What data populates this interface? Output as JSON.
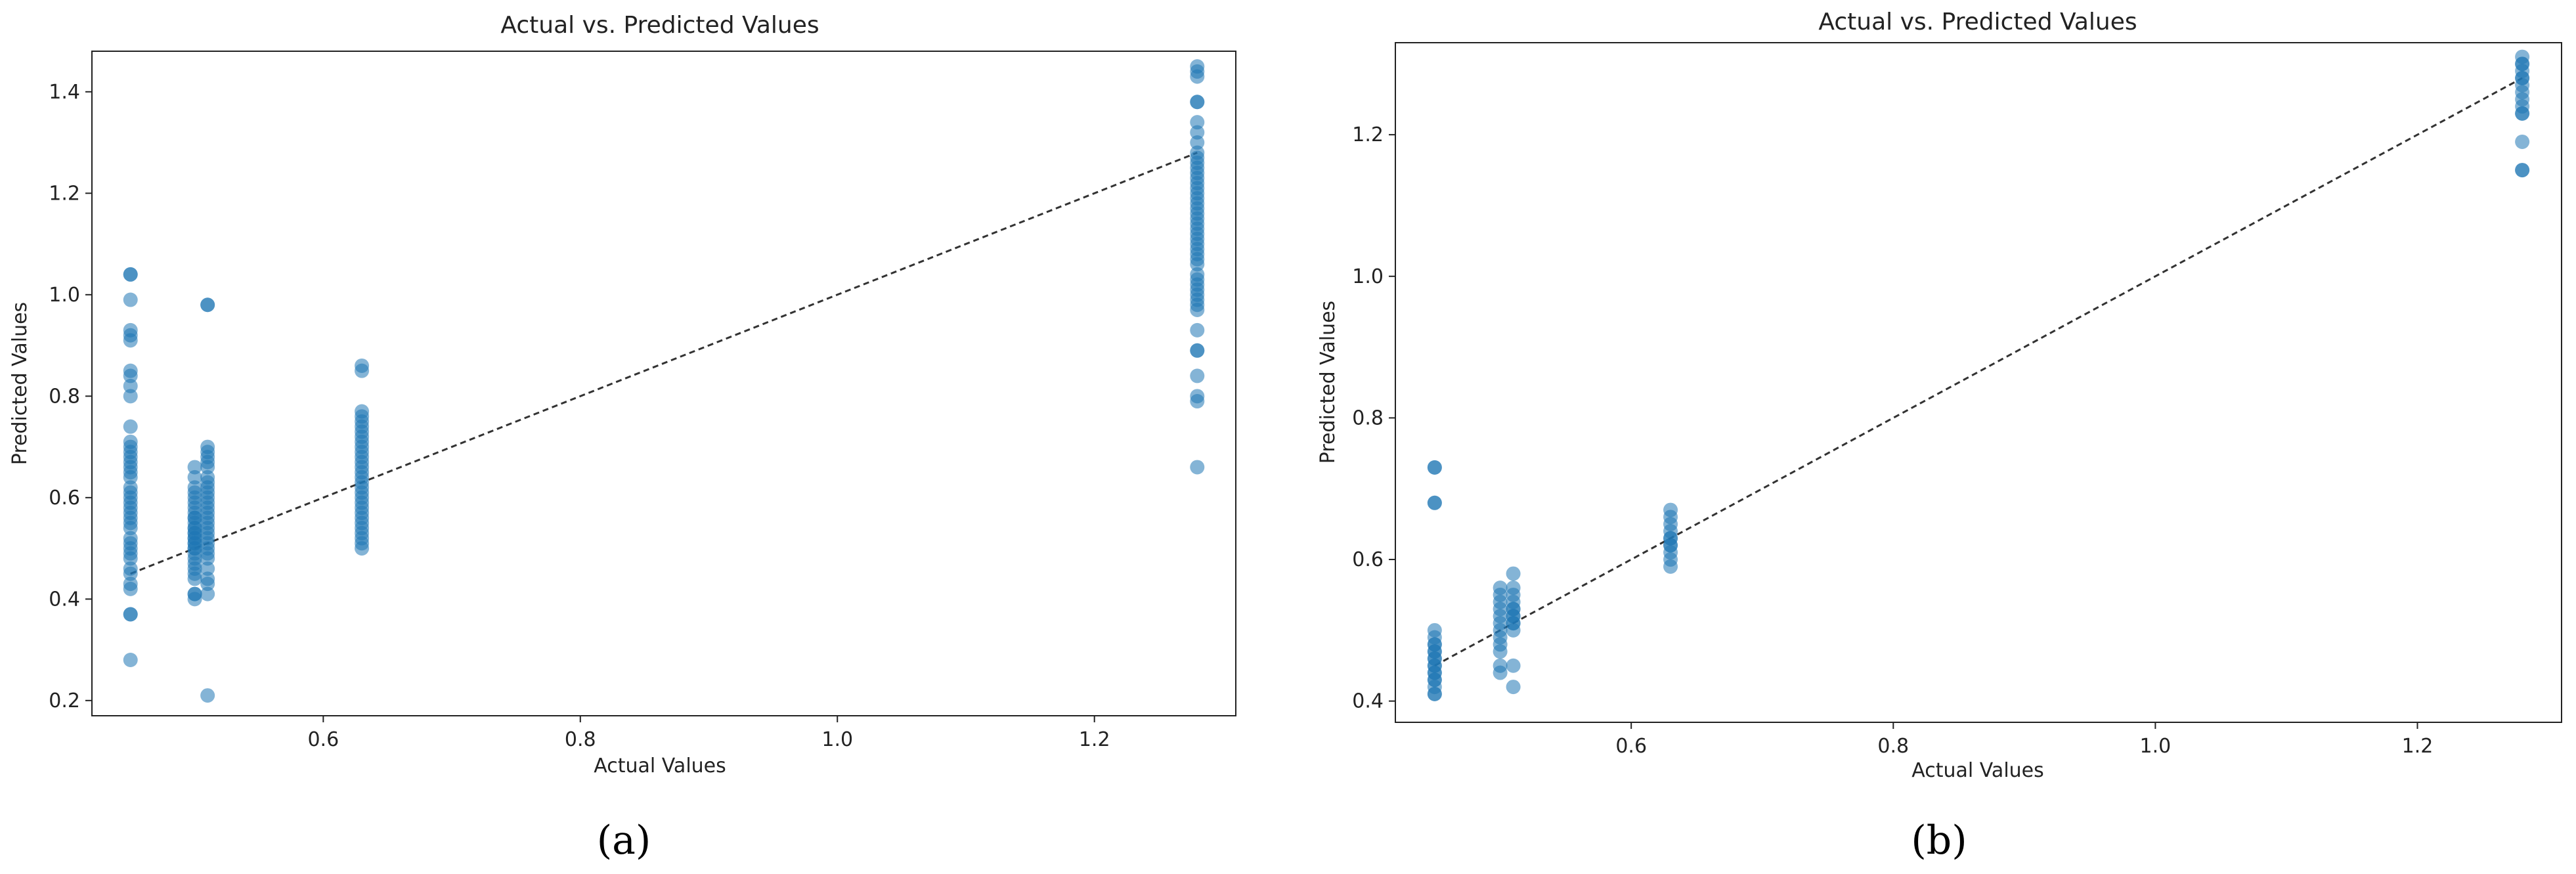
{
  "colors": {
    "point": "#1f77b4",
    "reference_line": "#333333",
    "background": "#ffffff"
  },
  "chart_data": [
    {
      "id": "a",
      "type": "scatter",
      "caption": "(a)",
      "title": "Actual vs. Predicted Values",
      "xlabel": "Actual Values",
      "ylabel": "Predicted Values",
      "xlim": [
        0.42,
        1.31
      ],
      "ylim": [
        0.17,
        1.48
      ],
      "xticks": [
        0.6,
        0.8,
        1.0,
        1.2
      ],
      "xtick_labels": [
        "0.6",
        "0.8",
        "1.0",
        "1.2"
      ],
      "yticks": [
        0.2,
        0.4,
        0.6,
        0.8,
        1.0,
        1.2,
        1.4
      ],
      "ytick_labels": [
        "0.2",
        "0.4",
        "0.6",
        "0.8",
        "1.0",
        "1.2",
        "1.4"
      ],
      "reference_line": {
        "x": [
          0.45,
          1.28
        ],
        "y": [
          0.45,
          1.28
        ],
        "style": "dashed"
      },
      "point_alpha": 0.55,
      "points_by_x": [
        {
          "x": 0.45,
          "y": [
            1.04,
            1.04,
            0.99,
            0.93,
            0.92,
            0.91,
            0.85,
            0.84,
            0.82,
            0.8,
            0.74,
            0.71,
            0.7,
            0.69,
            0.68,
            0.67,
            0.66,
            0.65,
            0.64,
            0.62,
            0.61,
            0.6,
            0.59,
            0.58,
            0.57,
            0.56,
            0.55,
            0.54,
            0.52,
            0.51,
            0.5,
            0.49,
            0.48,
            0.46,
            0.45,
            0.43,
            0.42,
            0.37,
            0.37,
            0.28
          ]
        },
        {
          "x": 0.5,
          "y": [
            0.66,
            0.64,
            0.62,
            0.61,
            0.6,
            0.59,
            0.58,
            0.57,
            0.56,
            0.56,
            0.55,
            0.54,
            0.54,
            0.53,
            0.53,
            0.52,
            0.52,
            0.51,
            0.51,
            0.5,
            0.5,
            0.49,
            0.48,
            0.47,
            0.46,
            0.45,
            0.44,
            0.41,
            0.41,
            0.4
          ]
        },
        {
          "x": 0.51,
          "y": [
            0.98,
            0.98,
            0.7,
            0.69,
            0.68,
            0.67,
            0.66,
            0.64,
            0.63,
            0.62,
            0.61,
            0.6,
            0.59,
            0.58,
            0.57,
            0.56,
            0.55,
            0.54,
            0.53,
            0.52,
            0.51,
            0.5,
            0.49,
            0.48,
            0.46,
            0.44,
            0.43,
            0.41,
            0.21
          ]
        },
        {
          "x": 0.63,
          "y": [
            0.86,
            0.85,
            0.77,
            0.76,
            0.75,
            0.74,
            0.73,
            0.72,
            0.71,
            0.7,
            0.69,
            0.68,
            0.67,
            0.66,
            0.65,
            0.64,
            0.63,
            0.62,
            0.61,
            0.6,
            0.59,
            0.58,
            0.57,
            0.56,
            0.55,
            0.54,
            0.53,
            0.52,
            0.51,
            0.5
          ]
        },
        {
          "x": 1.28,
          "y": [
            1.45,
            1.44,
            1.43,
            1.38,
            1.38,
            1.34,
            1.32,
            1.3,
            1.28,
            1.27,
            1.26,
            1.25,
            1.24,
            1.23,
            1.22,
            1.21,
            1.2,
            1.19,
            1.18,
            1.17,
            1.16,
            1.15,
            1.14,
            1.13,
            1.12,
            1.11,
            1.1,
            1.09,
            1.08,
            1.07,
            1.06,
            1.04,
            1.03,
            1.02,
            1.01,
            1.0,
            0.99,
            0.98,
            0.97,
            0.93,
            0.89,
            0.89,
            0.84,
            0.8,
            0.79,
            0.66
          ]
        }
      ]
    },
    {
      "id": "b",
      "type": "scatter",
      "caption": "(b)",
      "title": "Actual vs. Predicted Values",
      "xlabel": "Actual Values",
      "ylabel": "Predicted Values",
      "xlim": [
        0.42,
        1.31
      ],
      "ylim": [
        0.37,
        1.33
      ],
      "xticks": [
        0.6,
        0.8,
        1.0,
        1.2
      ],
      "xtick_labels": [
        "0.6",
        "0.8",
        "1.0",
        "1.2"
      ],
      "yticks": [
        0.4,
        0.6,
        0.8,
        1.0,
        1.2
      ],
      "ytick_labels": [
        "0.4",
        "0.6",
        "0.8",
        "1.0",
        "1.2"
      ],
      "reference_line": {
        "x": [
          0.45,
          1.28
        ],
        "y": [
          0.45,
          1.28
        ],
        "style": "dashed"
      },
      "point_alpha": 0.55,
      "points_by_x": [
        {
          "x": 0.45,
          "y": [
            0.73,
            0.73,
            0.68,
            0.68,
            0.5,
            0.49,
            0.48,
            0.48,
            0.47,
            0.47,
            0.46,
            0.46,
            0.45,
            0.45,
            0.44,
            0.44,
            0.43,
            0.43,
            0.42,
            0.41,
            0.41
          ]
        },
        {
          "x": 0.5,
          "y": [
            0.56,
            0.55,
            0.54,
            0.53,
            0.52,
            0.51,
            0.5,
            0.49,
            0.48,
            0.47,
            0.45,
            0.44
          ]
        },
        {
          "x": 0.51,
          "y": [
            0.58,
            0.56,
            0.55,
            0.54,
            0.53,
            0.53,
            0.52,
            0.52,
            0.51,
            0.51,
            0.5,
            0.45,
            0.42
          ]
        },
        {
          "x": 0.63,
          "y": [
            0.67,
            0.66,
            0.65,
            0.64,
            0.63,
            0.63,
            0.62,
            0.62,
            0.61,
            0.6,
            0.59
          ]
        },
        {
          "x": 1.28,
          "y": [
            1.31,
            1.3,
            1.3,
            1.29,
            1.28,
            1.28,
            1.27,
            1.26,
            1.25,
            1.24,
            1.23,
            1.23,
            1.19,
            1.15,
            1.15
          ]
        }
      ]
    }
  ]
}
